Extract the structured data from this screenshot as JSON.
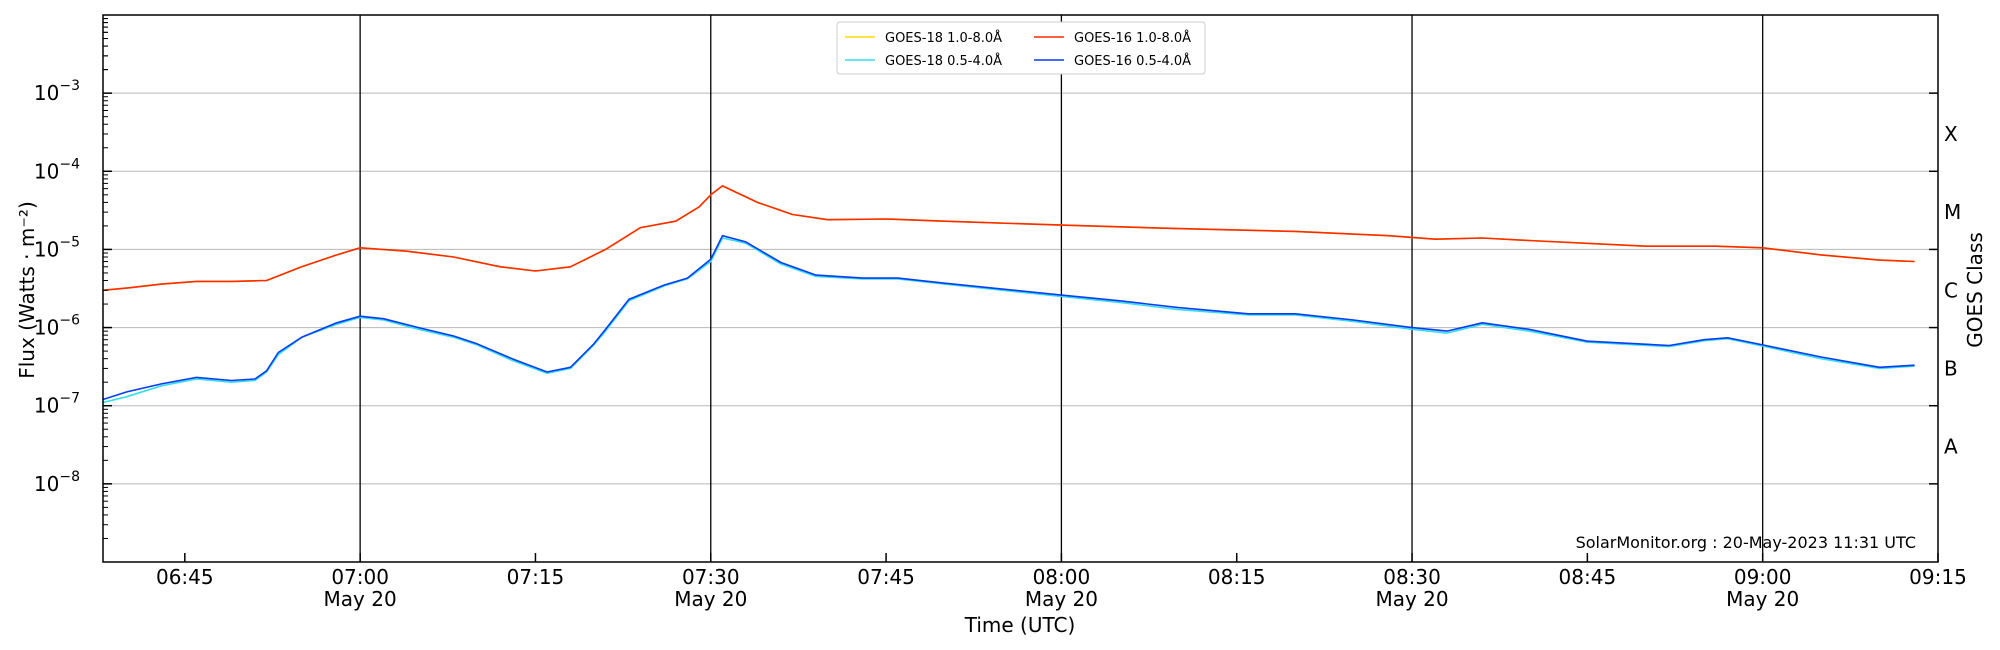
{
  "chart_data": {
    "type": "line",
    "xlabel": "Time (UTC)",
    "ylabel": "Flux (Watts · m⁻²)",
    "ylabel_right": "GOES Class",
    "y_scale": "log",
    "ylim": [
      1e-09,
      0.01
    ],
    "xlim": [
      "06:38",
      "09:15"
    ],
    "x_ticks": [
      {
        "time": "06:45",
        "date": ""
      },
      {
        "time": "07:00",
        "date": "May 20"
      },
      {
        "time": "07:15",
        "date": ""
      },
      {
        "time": "07:30",
        "date": "May 20"
      },
      {
        "time": "07:45",
        "date": ""
      },
      {
        "time": "08:00",
        "date": "May 20"
      },
      {
        "time": "08:15",
        "date": ""
      },
      {
        "time": "08:30",
        "date": "May 20"
      },
      {
        "time": "08:45",
        "date": ""
      },
      {
        "time": "09:00",
        "date": "May 20"
      },
      {
        "time": "09:15",
        "date": ""
      }
    ],
    "y_ticks": [
      {
        "value": 1e-08,
        "base": "10",
        "exp": "−8"
      },
      {
        "value": 1e-07,
        "base": "10",
        "exp": "−7"
      },
      {
        "value": 1e-06,
        "base": "10",
        "exp": "−6"
      },
      {
        "value": 1e-05,
        "base": "10",
        "exp": "−5"
      },
      {
        "value": 0.0001,
        "base": "10",
        "exp": "−4"
      },
      {
        "value": 0.001,
        "base": "10",
        "exp": "−3"
      }
    ],
    "goes_classes": [
      {
        "label": "A",
        "value": 3e-08
      },
      {
        "label": "B",
        "value": 3e-07
      },
      {
        "label": "C",
        "value": 3e-06
      },
      {
        "label": "M",
        "value": 3e-05
      },
      {
        "label": "X",
        "value": 0.0003
      }
    ],
    "vertical_lines": [
      "07:00",
      "07:30",
      "08:00",
      "08:30",
      "09:00"
    ],
    "grid": "horizontal",
    "legend_placement": "top-center",
    "credit": "SolarMonitor.org : 20-May-2023 11:31 UTC",
    "series": [
      {
        "name": "GOES-18 1.0-8.0Å",
        "color": "#ffd700",
        "x": [
          "06:38",
          "06:40",
          "06:43",
          "06:46",
          "06:49",
          "06:52",
          "06:55",
          "06:58",
          "07:00",
          "07:04",
          "07:08",
          "07:12",
          "07:15",
          "07:18",
          "07:21",
          "07:24",
          "07:27",
          "07:29",
          "07:30",
          "07:31",
          "07:34",
          "07:37",
          "07:40",
          "07:45",
          "07:50",
          "08:00",
          "08:10",
          "08:20",
          "08:28",
          "08:32",
          "08:36",
          "08:40",
          "08:50",
          "08:56",
          "09:00",
          "09:05",
          "09:10",
          "09:13"
        ],
        "y": [
          3e-06,
          3.2e-06,
          3.6e-06,
          3.9e-06,
          3.9e-06,
          4e-06,
          6e-06,
          8.5e-06,
          1.05e-05,
          9.5e-06,
          8e-06,
          6e-06,
          5.3e-06,
          6e-06,
          1e-05,
          1.9e-05,
          2.3e-05,
          3.5e-05,
          5e-05,
          6.5e-05,
          4e-05,
          2.8e-05,
          2.4e-05,
          2.45e-05,
          2.3e-05,
          2.05e-05,
          1.85e-05,
          1.7e-05,
          1.5e-05,
          1.35e-05,
          1.4e-05,
          1.3e-05,
          1.1e-05,
          1.1e-05,
          1.05e-05,
          8.5e-06,
          7.3e-06,
          7e-06
        ]
      },
      {
        "name": "GOES-16 1.0-8.0Å",
        "color": "#ff2a00",
        "x": [
          "06:38",
          "06:40",
          "06:43",
          "06:46",
          "06:49",
          "06:52",
          "06:55",
          "06:58",
          "07:00",
          "07:04",
          "07:08",
          "07:12",
          "07:15",
          "07:18",
          "07:21",
          "07:24",
          "07:27",
          "07:29",
          "07:30",
          "07:31",
          "07:34",
          "07:37",
          "07:40",
          "07:45",
          "07:50",
          "08:00",
          "08:10",
          "08:20",
          "08:28",
          "08:32",
          "08:36",
          "08:40",
          "08:50",
          "08:56",
          "09:00",
          "09:05",
          "09:10",
          "09:13"
        ],
        "y": [
          3e-06,
          3.2e-06,
          3.6e-06,
          3.9e-06,
          3.9e-06,
          4e-06,
          6e-06,
          8.5e-06,
          1.05e-05,
          9.5e-06,
          8e-06,
          6e-06,
          5.3e-06,
          6e-06,
          1e-05,
          1.9e-05,
          2.3e-05,
          3.5e-05,
          5e-05,
          6.5e-05,
          4e-05,
          2.8e-05,
          2.4e-05,
          2.45e-05,
          2.3e-05,
          2.05e-05,
          1.85e-05,
          1.7e-05,
          1.5e-05,
          1.35e-05,
          1.4e-05,
          1.3e-05,
          1.1e-05,
          1.1e-05,
          1.05e-05,
          8.5e-06,
          7.3e-06,
          7e-06
        ]
      },
      {
        "name": "GOES-18 0.5-4.0Å",
        "color": "#33ddee",
        "x": [
          "06:38",
          "06:40",
          "06:43",
          "06:46",
          "06:49",
          "06:51",
          "06:52",
          "06:53",
          "06:55",
          "06:58",
          "07:00",
          "07:02",
          "07:05",
          "07:08",
          "07:10",
          "07:13",
          "07:16",
          "07:18",
          "07:20",
          "07:21",
          "07:23",
          "07:26",
          "07:28",
          "07:30",
          "07:31",
          "07:33",
          "07:36",
          "07:39",
          "07:43",
          "07:46",
          "07:50",
          "08:00",
          "08:05",
          "08:10",
          "08:16",
          "08:20",
          "08:25",
          "08:30",
          "08:33",
          "08:36",
          "08:40",
          "08:45",
          "08:52",
          "08:55",
          "08:57",
          "09:00",
          "09:05",
          "09:10",
          "09:13"
        ],
        "y": [
          1.1e-07,
          1.3e-07,
          1.8e-07,
          2.2e-07,
          2e-07,
          2.1e-07,
          2.7e-07,
          4.5e-07,
          7.5e-07,
          1.1e-06,
          1.35e-06,
          1.25e-06,
          9.5e-07,
          7.5e-07,
          6e-07,
          3.8e-07,
          2.6e-07,
          3e-07,
          6e-07,
          9e-07,
          2.2e-06,
          3.4e-06,
          4.2e-06,
          7e-06,
          1.4e-05,
          1.2e-05,
          6.5e-06,
          4.5e-06,
          4.2e-06,
          4.2e-06,
          3.6e-06,
          2.5e-06,
          2.1e-06,
          1.7e-06,
          1.45e-06,
          1.45e-06,
          1.2e-06,
          9.5e-07,
          8.5e-07,
          1.1e-06,
          9e-07,
          6.5e-07,
          5.7e-07,
          6.8e-07,
          7.2e-07,
          5.8e-07,
          4e-07,
          3e-07,
          3.2e-07
        ]
      },
      {
        "name": "GOES-16 0.5-4.0Å",
        "color": "#0a3cf0",
        "x": [
          "06:38",
          "06:40",
          "06:43",
          "06:46",
          "06:49",
          "06:51",
          "06:52",
          "06:53",
          "06:55",
          "06:58",
          "07:00",
          "07:02",
          "07:05",
          "07:08",
          "07:10",
          "07:13",
          "07:16",
          "07:18",
          "07:20",
          "07:21",
          "07:23",
          "07:26",
          "07:28",
          "07:30",
          "07:31",
          "07:33",
          "07:36",
          "07:39",
          "07:43",
          "07:46",
          "07:50",
          "08:00",
          "08:05",
          "08:10",
          "08:16",
          "08:20",
          "08:25",
          "08:30",
          "08:33",
          "08:36",
          "08:40",
          "08:45",
          "08:52",
          "08:55",
          "08:57",
          "09:00",
          "09:05",
          "09:10",
          "09:13"
        ],
        "y": [
          1.2e-07,
          1.5e-07,
          1.9e-07,
          2.3e-07,
          2.1e-07,
          2.2e-07,
          2.8e-07,
          4.8e-07,
          7.5e-07,
          1.15e-06,
          1.4e-06,
          1.3e-06,
          1e-06,
          7.8e-07,
          6.2e-07,
          4e-07,
          2.7e-07,
          3.1e-07,
          6.2e-07,
          9.5e-07,
          2.3e-06,
          3.5e-06,
          4.3e-06,
          7.5e-06,
          1.5e-05,
          1.25e-05,
          6.8e-06,
          4.7e-06,
          4.3e-06,
          4.3e-06,
          3.7e-06,
          2.6e-06,
          2.2e-06,
          1.8e-06,
          1.5e-06,
          1.5e-06,
          1.25e-06,
          1e-06,
          9e-07,
          1.15e-06,
          9.5e-07,
          6.7e-07,
          5.9e-07,
          7e-07,
          7.4e-07,
          6e-07,
          4.2e-07,
          3.1e-07,
          3.3e-07
        ]
      }
    ],
    "legend_order": [
      0,
      1,
      2,
      3
    ]
  }
}
